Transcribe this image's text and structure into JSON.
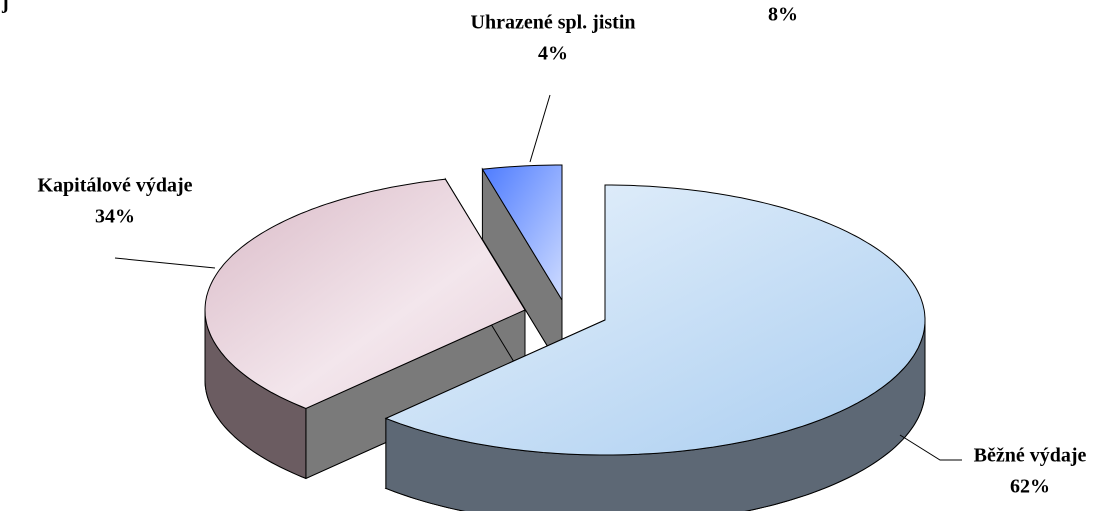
{
  "chart_data": {
    "type": "pie3d",
    "categories": [
      "Běžné výdaje",
      "Kapitálové výdaje",
      "Uhrazené spl. jistin"
    ],
    "values": [
      62,
      34,
      4
    ],
    "value_labels": [
      "62%",
      "34%",
      "4%"
    ],
    "colors": [
      "#cfe3f6",
      "#ecd6df",
      "#8fb2ff"
    ],
    "annotations": [
      "j",
      "8%"
    ]
  }
}
